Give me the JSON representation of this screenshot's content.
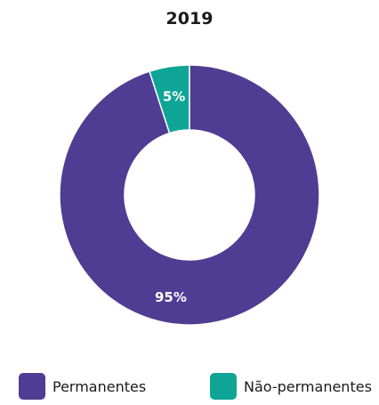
{
  "chart_data": {
    "type": "pie",
    "style": "donut",
    "title": "2019",
    "categories": [
      "Permanentes",
      "Não-permanentes"
    ],
    "values": [
      95,
      5
    ],
    "data_labels": [
      "95%",
      "5%"
    ],
    "colors": [
      "#4e3d93",
      "#0ea596"
    ],
    "legend_position": "bottom"
  }
}
